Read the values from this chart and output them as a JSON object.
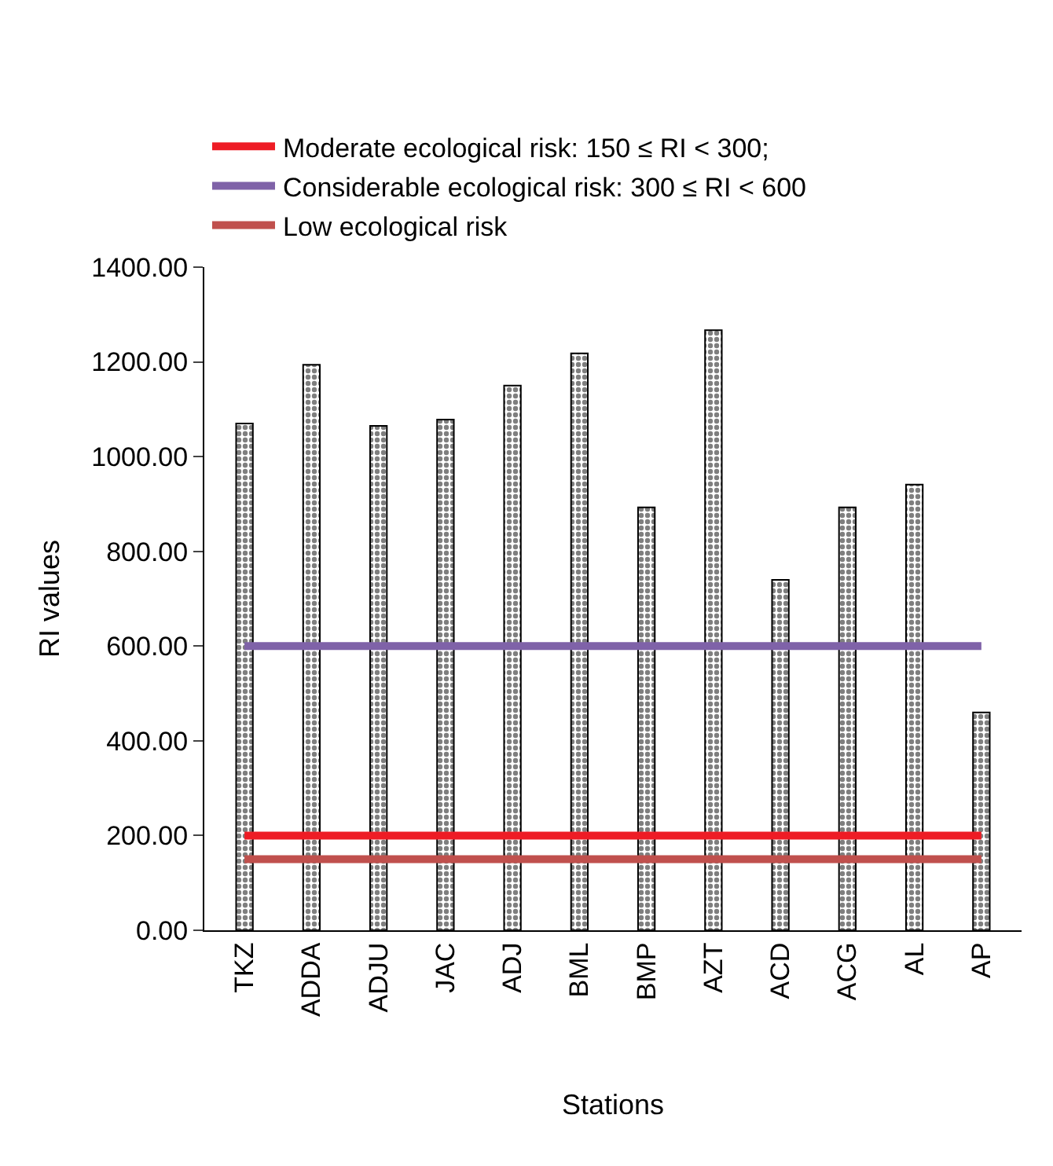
{
  "chart_data": {
    "type": "bar",
    "xlabel": "Stations",
    "ylabel": "RI values",
    "categories": [
      "TKZ",
      "ADDA",
      "ADJU",
      "JAC",
      "ADJ",
      "BML",
      "BMP",
      "AZT",
      "ACD",
      "ACG",
      "AL",
      "AP"
    ],
    "series": [
      {
        "color": "#000000",
        "values": [
          1070,
          1194,
          1065,
          1078,
          1150,
          1218,
          893,
          1267,
          740,
          893,
          941,
          460
        ]
      },
      {
        "type": "line",
        "name": "Moderate ecological risk: 150 ≤ RI < 300;",
        "color": "#ee1c25",
        "values": [
          200,
          200,
          200,
          200,
          200,
          200,
          200,
          200,
          200,
          200,
          200,
          200
        ]
      },
      {
        "type": "line",
        "name": "Considerable ecological risk: 300 ≤ RI < 600",
        "color": "#7f62a8",
        "values": [
          600,
          600,
          600,
          600,
          600,
          600,
          600,
          600,
          600,
          600,
          600,
          600
        ]
      },
      {
        "type": "line",
        "name": "Low ecological risk",
        "color": "#c0504d",
        "values": [
          150,
          150,
          150,
          150,
          150,
          150,
          150,
          150,
          150,
          150,
          150,
          150
        ]
      }
    ],
    "ylim": [
      0,
      1400
    ],
    "yticks": [
      {
        "value": 0,
        "label": "0.00"
      },
      {
        "value": 200,
        "label": "200.00"
      },
      {
        "value": 400,
        "label": "400.00"
      },
      {
        "value": 600,
        "label": "600.00"
      },
      {
        "value": 800,
        "label": "800.00"
      },
      {
        "value": 1000,
        "label": "1000.00"
      },
      {
        "value": 1200,
        "label": "1200.00"
      },
      {
        "value": 1400,
        "label": "1400.00"
      }
    ],
    "legend": "top"
  }
}
